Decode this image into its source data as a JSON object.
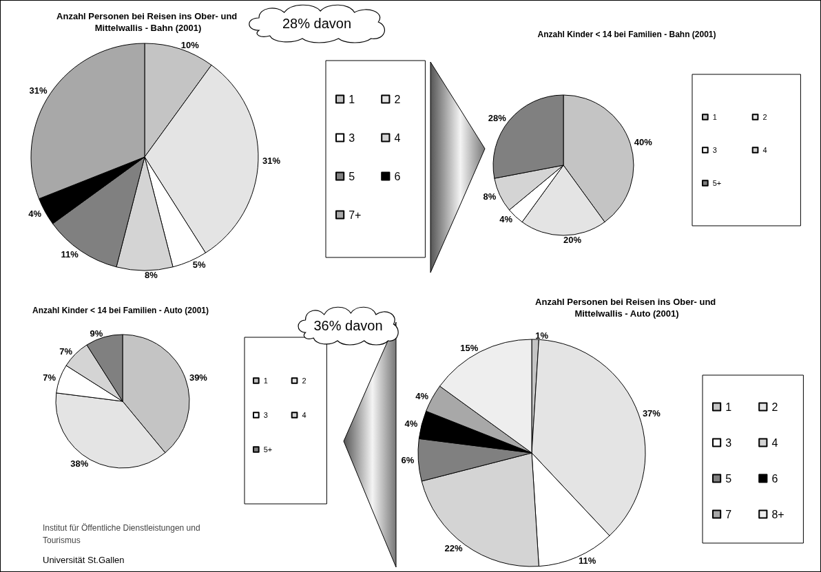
{
  "chart_data": [
    {
      "type": "pie",
      "title": "Anzahl Personen bei Reisen ins Ober- und Mittelwallis - Bahn (2001)",
      "categories": [
        "1",
        "2",
        "3",
        "4",
        "5",
        "6",
        "7+"
      ],
      "values": [
        10,
        31,
        5,
        8,
        11,
        4,
        31
      ],
      "value_labels": [
        "10%",
        "31%",
        "5%",
        "8%",
        "11%",
        "4%",
        "31%"
      ],
      "colors": [
        "#c4c4c4",
        "#e4e4e4",
        "#ffffff",
        "#d4d4d4",
        "#808080",
        "#000000",
        "#a8a8a8"
      ],
      "legend": "right"
    },
    {
      "type": "pie",
      "title": "Anzahl Kinder < 14 bei Familien - Bahn (2001)",
      "categories": [
        "1",
        "2",
        "3",
        "4",
        "5+"
      ],
      "values": [
        40,
        20,
        4,
        8,
        28
      ],
      "value_labels": [
        "40%",
        "20%",
        "4%",
        "8%",
        "28%"
      ],
      "colors": [
        "#c4c4c4",
        "#e4e4e4",
        "#ffffff",
        "#d4d4d4",
        "#808080"
      ],
      "legend": "right",
      "annotations": [
        "28% davon"
      ]
    },
    {
      "type": "pie",
      "title": "Anzahl Kinder < 14 bei Familien - Auto (2001)",
      "categories": [
        "1",
        "2",
        "3",
        "4",
        "5+"
      ],
      "values": [
        39,
        38,
        7,
        7,
        9
      ],
      "value_labels": [
        "39%",
        "38%",
        "7%",
        "7%",
        "9%"
      ],
      "colors": [
        "#c4c4c4",
        "#e4e4e4",
        "#ffffff",
        "#d4d4d4",
        "#808080"
      ],
      "legend": "right",
      "annotations": [
        "Institut für Öffentliche Dienstleistungen und Tourismus",
        "Universität St.Gallen"
      ]
    },
    {
      "type": "pie",
      "title": "Anzahl Personen bei Reisen ins Ober- und Mittelwallis - Auto (2001)",
      "categories": [
        "1",
        "2",
        "3",
        "4",
        "5",
        "6",
        "7",
        "8+"
      ],
      "values": [
        1,
        37,
        11,
        22,
        6,
        4,
        4,
        15
      ],
      "value_labels": [
        "1%",
        "37%",
        "11%",
        "22%",
        "6%",
        "4%",
        "4%",
        "15%"
      ],
      "colors": [
        "#c4c4c4",
        "#e4e4e4",
        "#ffffff",
        "#d4d4d4",
        "#808080",
        "#000000",
        "#a8a8a8",
        "#eeeeee"
      ],
      "legend": "right",
      "annotations": [
        "36% davon"
      ]
    }
  ]
}
